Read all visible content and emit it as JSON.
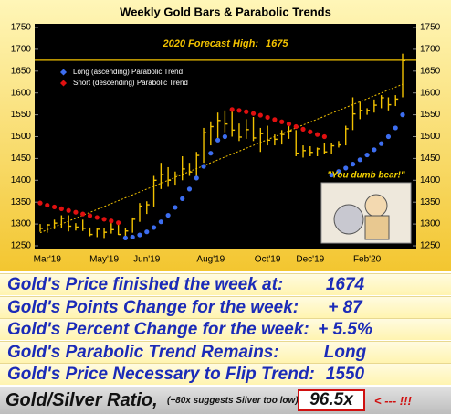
{
  "chart_data": {
    "type": "ohlc",
    "title": "Weekly Gold Bars & Parabolic Trends",
    "categories": [
      null,
      "Mar'19",
      null,
      null,
      null,
      null,
      null,
      null,
      null,
      "May'19",
      null,
      null,
      null,
      null,
      null,
      "Jun'19",
      null,
      null,
      null,
      null,
      null,
      null,
      null,
      null,
      "Aug'19",
      null,
      null,
      null,
      null,
      null,
      null,
      null,
      "Oct'19",
      null,
      null,
      null,
      null,
      null,
      "Dec'19",
      null,
      null,
      null,
      null,
      null,
      null,
      null,
      "Feb'20",
      null,
      null,
      null,
      null,
      null
    ],
    "low": [
      1282,
      1280,
      1288,
      1290,
      1283,
      1285,
      1284,
      1272,
      1270,
      1268,
      1278,
      1275,
      1272,
      1280,
      1305,
      1323,
      1340,
      1380,
      1385,
      1390,
      1400,
      1410,
      1400,
      1440,
      1480,
      1490,
      1510,
      1500,
      1490,
      1495,
      1490,
      1465,
      1480,
      1480,
      1482,
      1495,
      1455,
      1452,
      1455,
      1455,
      1460,
      1460,
      1475,
      1480,
      1515,
      1540,
      1550,
      1555,
      1565,
      1560,
      1570,
      1590
    ],
    "high": [
      1300,
      1300,
      1310,
      1320,
      1320,
      1302,
      1310,
      1292,
      1290,
      1290,
      1302,
      1303,
      1290,
      1315,
      1348,
      1352,
      1410,
      1440,
      1430,
      1420,
      1455,
      1440,
      1465,
      1520,
      1535,
      1555,
      1560,
      1565,
      1530,
      1540,
      1545,
      1520,
      1525,
      1505,
      1515,
      1525,
      1515,
      1480,
      1478,
      1475,
      1485,
      1485,
      1490,
      1525,
      1590,
      1580,
      1565,
      1585,
      1595,
      1590,
      1595,
      1690
    ],
    "close": [
      1290,
      1298,
      1302,
      1313,
      1295,
      1293,
      1290,
      1276,
      1288,
      1281,
      1287,
      1276,
      1284,
      1311,
      1341,
      1344,
      1400,
      1413,
      1400,
      1412,
      1426,
      1419,
      1457,
      1509,
      1523,
      1537,
      1529,
      1515,
      1499,
      1516,
      1497,
      1507,
      1492,
      1494,
      1505,
      1513,
      1462,
      1468,
      1464,
      1472,
      1465,
      1479,
      1481,
      1518,
      1552,
      1560,
      1560,
      1572,
      1589,
      1573,
      1586,
      1674
    ],
    "bar_color": "#f2c200",
    "series": [
      {
        "name": "Long (ascending) Parabolic Trend",
        "color": "#3d6ef0",
        "values": [
          null,
          null,
          null,
          null,
          null,
          null,
          null,
          null,
          null,
          null,
          null,
          null,
          1268,
          1270,
          1275,
          1282,
          1292,
          1305,
          1320,
          1338,
          1358,
          1380,
          1405,
          1432,
          1462,
          1492,
          1500,
          null,
          null,
          null,
          null,
          null,
          null,
          null,
          null,
          null,
          null,
          null,
          null,
          null,
          null,
          1412,
          1420,
          1428,
          1437,
          1447,
          1458,
          1470,
          1484,
          1500,
          1520,
          1550
        ]
      },
      {
        "name": "Short (descending) Parabolic Trend",
        "color": "#e01010",
        "values": [
          1348,
          1343,
          1339,
          1335,
          1331,
          1327,
          1323,
          1319,
          1315,
          1311,
          1307,
          1303,
          null,
          null,
          null,
          null,
          null,
          null,
          null,
          null,
          null,
          null,
          null,
          null,
          null,
          null,
          null,
          1562,
          1560,
          1557,
          1553,
          1549,
          1544,
          1539,
          1534,
          1529,
          1523,
          1517,
          1511,
          1505,
          1500,
          null,
          null,
          null,
          null,
          null,
          null,
          null,
          null,
          null,
          null,
          null
        ]
      }
    ],
    "trend_line": {
      "x": [
        0,
        51
      ],
      "values": [
        1280,
        1620
      ],
      "color": "#f2c200"
    },
    "forecast": {
      "label": "2020 Forecast High:",
      "value": 1675,
      "color": "#f2c200"
    },
    "annotation": "\"You dumb bear!\"",
    "ylim": [
      1250,
      1750
    ],
    "yticks": [
      1250,
      1300,
      1350,
      1400,
      1450,
      1500,
      1550,
      1600,
      1650,
      1700,
      1750
    ]
  },
  "table": {
    "rows": [
      [
        "Gold's Price finished the week at:",
        "1674"
      ],
      [
        "Gold's Points Change for the week:",
        "+ 87"
      ],
      [
        "Gold's Percent Change for the week:",
        "+ 5.5%"
      ],
      [
        "Gold's Parabolic Trend Remains:",
        "Long"
      ],
      [
        "Gold's Price Necessary to Flip Trend:",
        "1550"
      ]
    ],
    "footer": {
      "label": "Gold/Silver Ratio,",
      "note": "(+80x suggests Silver too low):",
      "value": "96.5x",
      "arrow": "< --- !!!"
    }
  }
}
